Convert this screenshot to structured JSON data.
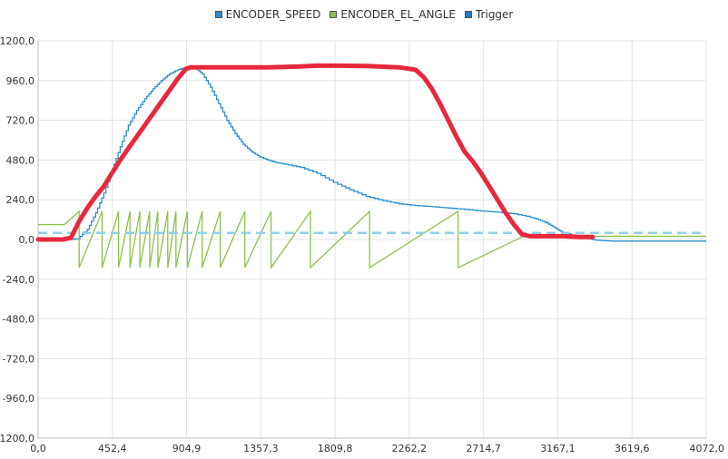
{
  "chart_data": {
    "type": "line",
    "title": "",
    "xlabel": "",
    "ylabel": "",
    "xlim": [
      0,
      4072.0
    ],
    "ylim": [
      -1200,
      1200
    ],
    "x_ticks": [
      "0,0",
      "452,4",
      "904,9",
      "1357,3",
      "1809,8",
      "2262,2",
      "2714,7",
      "3167,1",
      "3619,6",
      "4072,0"
    ],
    "y_ticks": [
      "1200,0",
      "960,0",
      "720,0",
      "480,0",
      "240,0",
      "0,0",
      "-240,0",
      "-480,0",
      "-720,0",
      "-960,0",
      "-1200,0"
    ],
    "grid": true,
    "legend_position": "top-center",
    "series": [
      {
        "name": "ENCODER_SPEED",
        "color": "#2a8fd0",
        "style": "step",
        "x": [
          0,
          200,
          240,
          300,
          350,
          400,
          450,
          500,
          550,
          600,
          650,
          700,
          750,
          800,
          850,
          900,
          950,
          1000,
          1050,
          1100,
          1150,
          1200,
          1250,
          1300,
          1350,
          1400,
          1450,
          1500,
          1600,
          1700,
          1800,
          1900,
          2000,
          2100,
          2200,
          2300,
          2400,
          2500,
          2600,
          2700,
          2800,
          2900,
          3000,
          3050,
          3100,
          3150,
          3200,
          3300,
          3400,
          3500,
          3600,
          3700,
          4072
        ],
        "values": [
          0,
          0,
          5,
          60,
          160,
          280,
          420,
          560,
          690,
          780,
          850,
          910,
          960,
          1000,
          1025,
          1040,
          1040,
          1000,
          920,
          820,
          720,
          640,
          575,
          530,
          500,
          480,
          465,
          455,
          435,
          400,
          345,
          300,
          260,
          235,
          215,
          205,
          198,
          190,
          182,
          172,
          165,
          155,
          135,
          120,
          100,
          70,
          40,
          15,
          -5,
          -10,
          -10,
          -10,
          -10
        ]
      },
      {
        "name": "ENCODER_EL_ANGLE",
        "color": "#8bc34a",
        "style": "sawtooth",
        "start_level": 90,
        "ramp_start_x": 160,
        "ramp_end_x": 250,
        "peak": 170,
        "trough": -170,
        "reset_x": [
          250,
          390,
          490,
          560,
          620,
          680,
          730,
          790,
          840,
          910,
          1000,
          1110,
          1260,
          1420,
          1660,
          2020,
          2560
        ],
        "tail": {
          "x": [
            2560,
            2960,
            3400,
            4072
          ],
          "values": [
            -170,
            20,
            20,
            20
          ]
        }
      },
      {
        "name": "Trigger",
        "color": "#1e7fc6",
        "style": "dashed",
        "display_color": "#8fd0ea",
        "x": [
          0,
          4072
        ],
        "values": [
          40,
          40
        ]
      }
    ],
    "annotations": [
      {
        "type": "freehand-stroke",
        "color": "#e8283c",
        "x": [
          0,
          150,
          200,
          250,
          300,
          350,
          400,
          450,
          500,
          550,
          600,
          650,
          700,
          750,
          800,
          850,
          900,
          930,
          1000,
          1200,
          1400,
          1600,
          1700,
          1800,
          2000,
          2200,
          2300,
          2350,
          2400,
          2450,
          2500,
          2550,
          2600,
          2650,
          2700,
          2750,
          2800,
          2850,
          2900,
          2950,
          3000,
          3100,
          3200,
          3300,
          3380
        ],
        "values": [
          0,
          0,
          10,
          110,
          190,
          260,
          320,
          400,
          480,
          550,
          620,
          690,
          760,
          830,
          900,
          970,
          1030,
          1040,
          1040,
          1040,
          1040,
          1045,
          1050,
          1050,
          1048,
          1040,
          1025,
          980,
          910,
          820,
          720,
          620,
          530,
          470,
          400,
          320,
          240,
          160,
          90,
          30,
          20,
          20,
          20,
          15,
          15
        ]
      }
    ]
  }
}
